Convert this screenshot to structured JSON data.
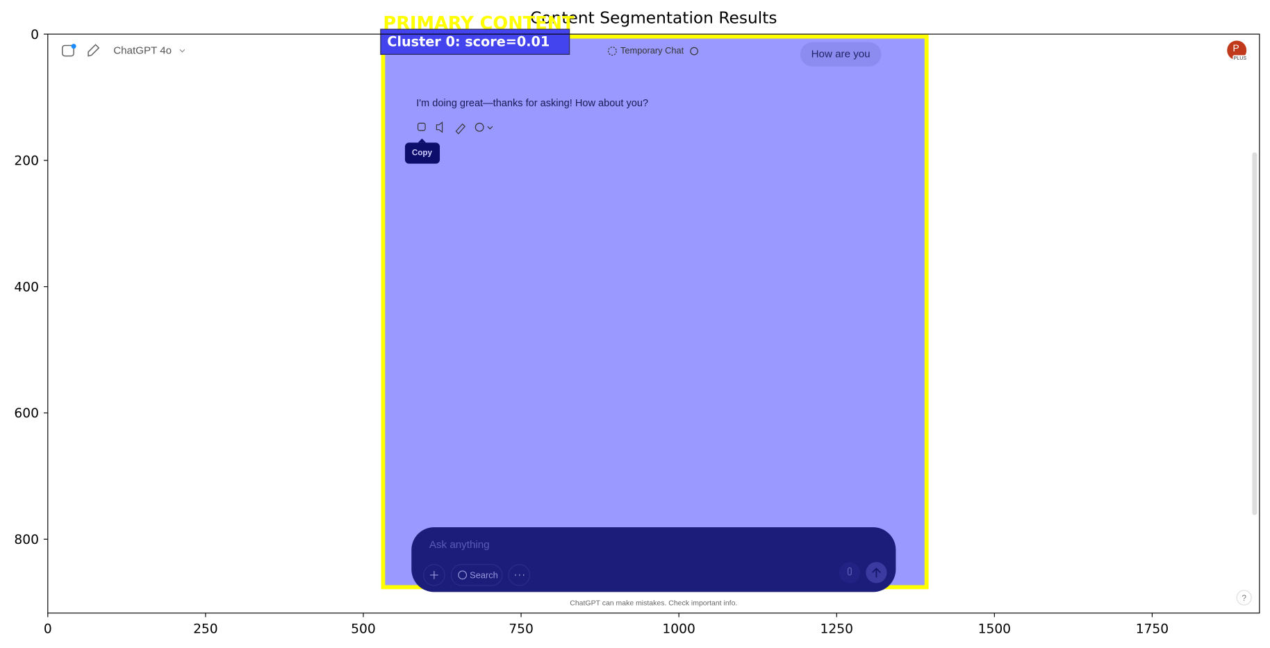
{
  "chart_data": {
    "type": "image",
    "title": "Content Segmentation Results",
    "xlim": [
      0,
      1920
    ],
    "ylim": [
      917,
      0
    ],
    "xticks": [
      0,
      250,
      500,
      750,
      1000,
      1250,
      1500,
      1750
    ],
    "yticks": [
      0,
      200,
      400,
      600,
      800
    ]
  },
  "overlay": {
    "region_label": "PRIMARY CONTENT",
    "cluster_label": "Cluster 0: score=0.01"
  },
  "screenshot": {
    "model": "ChatGPT 4o",
    "temporary_chat": "Temporary Chat",
    "user_message": "How are you",
    "reply": "I'm doing great—thanks for asking! How about you?",
    "tooltip": "Copy",
    "input_placeholder": "Ask anything",
    "search_button": "Search",
    "disclaimer": "ChatGPT can make mistakes. Check important info.",
    "avatar_initial": "P",
    "avatar_badge": "PLUS",
    "help": "?"
  }
}
